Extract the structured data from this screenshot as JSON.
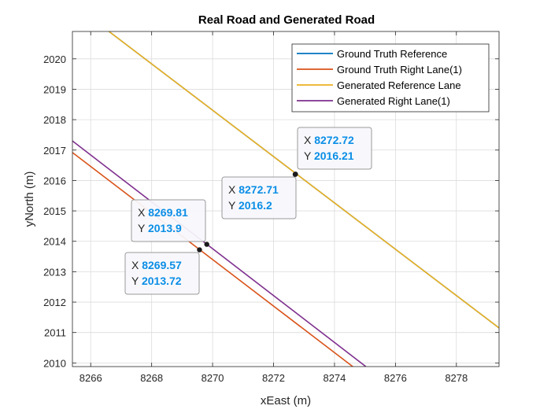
{
  "chart_data": {
    "type": "line",
    "title": "Real Road and Generated Road",
    "xlabel": "xEast (m)",
    "ylabel": "yNorth (m)",
    "xlim": [
      8265.4,
      8279.4
    ],
    "ylim": [
      2009.88,
      2020.9
    ],
    "xticks": [
      8266,
      8268,
      8270,
      8272,
      8274,
      8276,
      8278
    ],
    "yticks": [
      2010,
      2011,
      2012,
      2013,
      2014,
      2015,
      2016,
      2017,
      2018,
      2019,
      2020
    ],
    "grid": true,
    "legend_position": "top-right",
    "series": [
      {
        "name": "Ground Truth Reference",
        "color": "#0072BD",
        "x": [
          8266.6,
          8279.4
        ],
        "y": [
          2020.9,
          2011.15
        ]
      },
      {
        "name": "Ground Truth Right Lane(1)",
        "color": "#D95319",
        "x": [
          8265.4,
          8274.6
        ],
        "y": [
          2016.92,
          2009.88
        ]
      },
      {
        "name": "Generated Reference Lane",
        "color": "#EDB120",
        "x": [
          8266.6,
          8279.4
        ],
        "y": [
          2020.9,
          2011.15
        ]
      },
      {
        "name": "Generated Right Lane(1)",
        "color": "#7E2F8E",
        "x": [
          8265.4,
          8275.03
        ],
        "y": [
          2017.3,
          2009.88
        ]
      }
    ],
    "datatips": [
      {
        "x_label": "X",
        "x_value": "8272.72",
        "y_label": "Y",
        "y_value": "2016.21",
        "x": 8272.72,
        "y": 2016.21
      },
      {
        "x_label": "X",
        "x_value": "8272.71",
        "y_label": "Y",
        "y_value": "2016.2",
        "x": 8272.71,
        "y": 2016.2
      },
      {
        "x_label": "X",
        "x_value": "8269.81",
        "y_label": "Y",
        "y_value": "2013.9",
        "x": 8269.81,
        "y": 2013.9
      },
      {
        "x_label": "X",
        "x_value": "8269.57",
        "y_label": "Y",
        "y_value": "2013.72",
        "x": 8269.57,
        "y": 2013.72
      }
    ]
  }
}
